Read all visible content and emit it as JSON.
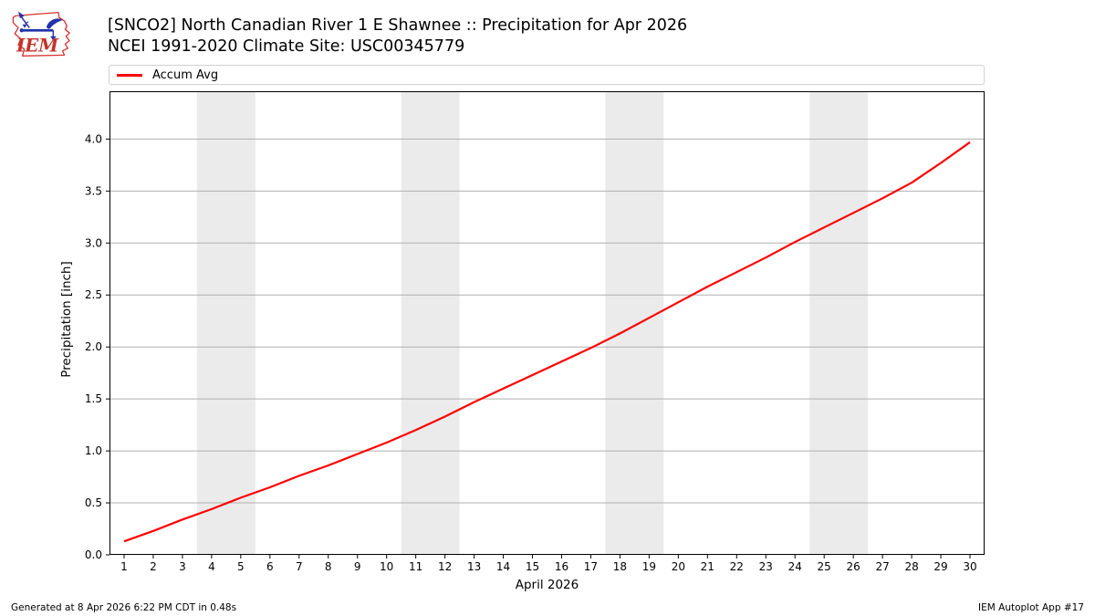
{
  "logo": {
    "text": "IEM",
    "colors": {
      "outline": "#d63333",
      "vane": "#2233aa",
      "text": "#c2342c"
    }
  },
  "header": {
    "title_line1": "[SNCO2] North Canadian River 1 E Shawnee :: Precipitation for Apr 2026",
    "title_line2": "NCEI 1991-2020 Climate Site: USC00345779"
  },
  "legend": {
    "items": [
      {
        "label": "Accum Avg",
        "color": "#ff0000"
      }
    ]
  },
  "footer": {
    "left": "Generated at 8 Apr 2026 6:22 PM CDT in 0.48s",
    "right": "IEM Autoplot App #17"
  },
  "chart_data": {
    "type": "line",
    "title": "[SNCO2] North Canadian River 1 E Shawnee :: Precipitation for Apr 2026",
    "subtitle": "NCEI 1991-2020 Climate Site: USC00345779",
    "xlabel": "April 2026",
    "ylabel": "Precipitation [inch]",
    "xlim": [
      0.5,
      30.5
    ],
    "ylim": [
      0,
      4.46
    ],
    "grid": "horizontal",
    "legend_position": "top",
    "xticks": [
      1,
      2,
      3,
      4,
      5,
      6,
      7,
      8,
      9,
      10,
      11,
      12,
      13,
      14,
      15,
      16,
      17,
      18,
      19,
      20,
      21,
      22,
      23,
      24,
      25,
      26,
      27,
      28,
      29,
      30
    ],
    "ytick_labels": [
      "0.0",
      "0.5",
      "1.0",
      "1.5",
      "2.0",
      "2.5",
      "3.0",
      "3.5",
      "4.0"
    ],
    "weekend_bands": [
      [
        3.5,
        5.5
      ],
      [
        10.5,
        12.5
      ],
      [
        17.5,
        19.5
      ],
      [
        24.5,
        26.5
      ]
    ],
    "series": [
      {
        "name": "Accum Avg",
        "color": "#ff0000",
        "x": [
          1,
          2,
          3,
          4,
          5,
          6,
          7,
          8,
          9,
          10,
          11,
          12,
          13,
          14,
          15,
          16,
          17,
          18,
          19,
          20,
          21,
          22,
          23,
          24,
          25,
          26,
          27,
          28,
          29,
          30
        ],
        "y": [
          0.13,
          0.23,
          0.34,
          0.44,
          0.55,
          0.65,
          0.76,
          0.86,
          0.97,
          1.08,
          1.2,
          1.33,
          1.47,
          1.6,
          1.73,
          1.86,
          1.99,
          2.13,
          2.28,
          2.43,
          2.58,
          2.72,
          2.86,
          3.01,
          3.15,
          3.29,
          3.43,
          3.58,
          3.77,
          3.97
        ]
      }
    ],
    "colors": {
      "band": "#ebebeb",
      "grid": "#b0b0b0",
      "spine": "#000000"
    }
  }
}
